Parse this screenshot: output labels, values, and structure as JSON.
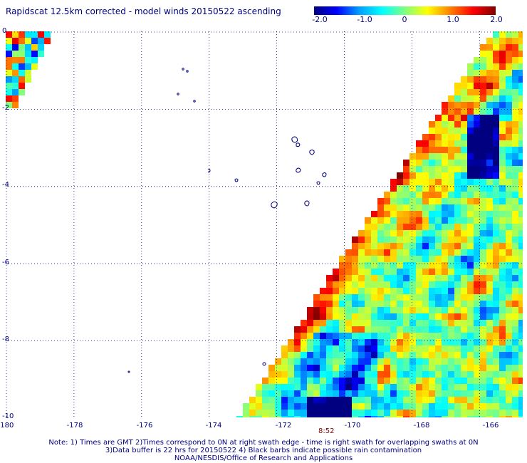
{
  "title": "Rapidscat 12.5km corrected - model winds 20150522 ascending",
  "colorbar": {
    "labels": [
      "-2.0",
      "-1.0",
      "0",
      "1.0",
      "2.0"
    ],
    "min": -2.0,
    "max": 2.0,
    "colors": [
      "#000080",
      "#0000ff",
      "#00a0ff",
      "#00ffff",
      "#80ff80",
      "#ffff00",
      "#ff8000",
      "#ff0000",
      "#800000"
    ]
  },
  "axes": {
    "x_ticks": [
      "-180",
      "-178",
      "-176",
      "-174",
      "-172",
      "-170",
      "-168",
      "-166"
    ],
    "y_ticks": [
      "0",
      "-2",
      "-4",
      "-6",
      "-8",
      "-10"
    ],
    "lon_range": [
      -180,
      -164.7
    ],
    "lat_range": [
      0,
      -10
    ],
    "grid": "dotted"
  },
  "swath_time": "8:52",
  "notes": [
    "Note: 1) Times are GMT 2)Times correspond to 0N at right swath edge - time is right swath for overlapping swaths at 0N",
    "3)Data buffer is 22 hrs for 20150522 4) Black barbs indicate possible rain contamination",
    "NOAA/NESDIS/Office of Research and Applications"
  ]
}
